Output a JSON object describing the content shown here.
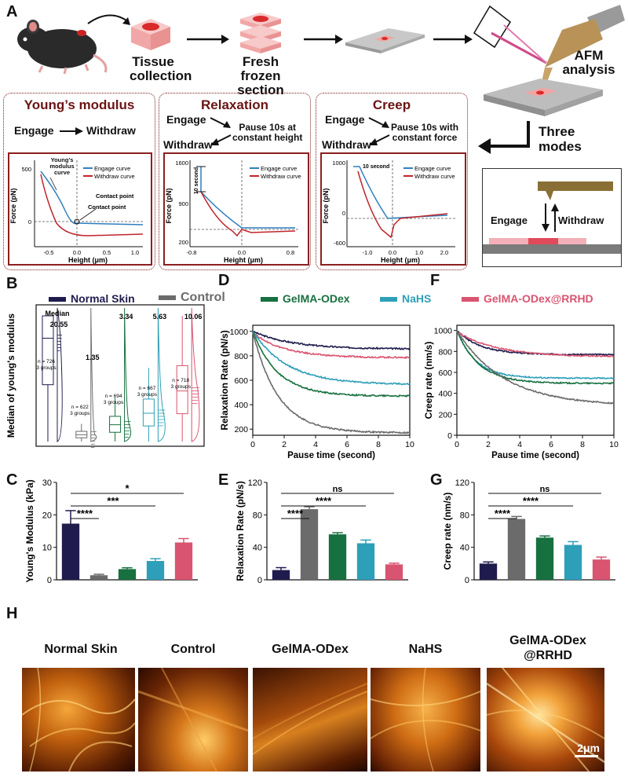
{
  "colors": {
    "normal": "#1f1c4d",
    "control": "#6b6b6b",
    "gelma": "#17703f",
    "nahs": "#2e9fb8",
    "rrhd": "#d95470",
    "dark_red": "#7a1c1c",
    "engage": "#2f7fbf",
    "withdraw": "#c0242b"
  },
  "panel_letters": {
    "A": "A",
    "B": "B",
    "C": "C",
    "D": "D",
    "E": "E",
    "F": "F",
    "G": "G",
    "H": "H"
  },
  "workflow": {
    "step1": "Tissue collection",
    "step1a": "Tissue",
    "step1b": "collection",
    "step2a": "Fresh frozen",
    "step2b": "section",
    "step3a": "AFM",
    "step3b": "analysis",
    "three_modes_a": "Three",
    "three_modes_b": "modes",
    "engage": "Engage",
    "withdraw": "Withdraw"
  },
  "modes": [
    {
      "title": "Young’s modulus",
      "steps": [
        "Engage",
        "Withdraw"
      ],
      "plot": {
        "ylabel": "Force (pN)",
        "xlabel": "Height (μm)",
        "yticks": [
          "500",
          "0"
        ],
        "xticks": [
          "-0.5",
          "0.0",
          "0.5",
          "1.0"
        ],
        "legend": [
          "Engage curve",
          "Withdraw curve"
        ],
        "annotations": [
          "Young’s modulus curve",
          "Contact point",
          "Contact point"
        ]
      }
    },
    {
      "title": "Relaxation",
      "steps": [
        "Engage",
        "Pause 10s at constant height",
        "Withdraw"
      ],
      "pause_a": "Pause 10s at",
      "pause_b": "constant height",
      "plot": {
        "ylabel": "Force (pN)",
        "xlabel": "Height (μm)",
        "yticks": [
          "1600",
          "900",
          "200"
        ],
        "xticks": [
          "-0.8",
          "0.0",
          "0.8"
        ],
        "legend": [
          "Engage curve",
          "Withdraw curve"
        ],
        "annotations": [
          "10 second"
        ]
      }
    },
    {
      "title": "Creep",
      "steps": [
        "Engage",
        "Pause 10s with constant force",
        "Withdraw"
      ],
      "pause_a": "Pause 10s with",
      "pause_b": "constant force",
      "plot": {
        "ylabel": "Force (pN)",
        "xlabel": "Height (μm)",
        "yticks": [
          "1000",
          "0",
          "-600"
        ],
        "xticks": [
          "-1.0",
          "0.0",
          "1.0",
          "2.0"
        ],
        "legend": [
          "Engage curve",
          "Withdraw curve"
        ],
        "annotations": [
          "10 second"
        ]
      }
    }
  ],
  "legend": [
    "Normal Skin",
    "Control",
    "GelMA-ODex",
    "NaHS",
    "GelMA-ODex@RRHD"
  ],
  "chart_data": [
    {
      "panel": "B",
      "type": "violin-box",
      "ylabel": "Median of young's modulus",
      "groups": [
        "Normal Skin",
        "Control",
        "GelMA-ODex",
        "NaHS",
        "GelMA-ODex@RRHD"
      ],
      "medians": [
        20.55,
        1.35,
        3.34,
        5.63,
        10.06
      ],
      "median_header": "Median",
      "n_labels": [
        "n = 726 3 groups",
        "n = 622 3 groups",
        "n = 694 3 groups",
        "n = 667 3 groups",
        "n = 718 3 groups"
      ],
      "median_labels": [
        "20.55",
        "1.35",
        "3.34",
        "5.63",
        "10.06"
      ]
    },
    {
      "panel": "C",
      "type": "bar",
      "ylabel": "Young's Modulus (kPa)",
      "categories": [
        "Normal Skin",
        "Control",
        "GelMA-ODex",
        "NaHS",
        "GelMA-ODex@RRHD"
      ],
      "values": [
        17.3,
        1.4,
        3.3,
        5.8,
        11.5
      ],
      "errors": [
        4.0,
        0.3,
        0.4,
        0.7,
        1.2
      ],
      "ylim": [
        0,
        30
      ],
      "yticks": [
        0,
        10,
        20,
        30
      ],
      "significance": [
        "****",
        "***",
        "*"
      ]
    },
    {
      "panel": "D",
      "type": "line",
      "xlabel": "Pause time (second)",
      "ylabel": "Relaxation Rate (pN/s)",
      "xlim": [
        0,
        10
      ],
      "ylim": [
        150,
        1050
      ],
      "xticks": [
        0,
        2,
        4,
        6,
        8,
        10
      ],
      "yticks": [
        200,
        400,
        600,
        800,
        1000
      ],
      "series": [
        {
          "name": "Normal Skin",
          "start": 1000,
          "end": 855,
          "tau": 2.5
        },
        {
          "name": "GelMA-ODex@RRHD",
          "start": 990,
          "end": 785,
          "tau": 2.0
        },
        {
          "name": "NaHS",
          "start": 1000,
          "end": 565,
          "tau": 2.2
        },
        {
          "name": "GelMA-ODex",
          "start": 1000,
          "end": 470,
          "tau": 1.6
        },
        {
          "name": "Control",
          "start": 1000,
          "end": 170,
          "tau": 1.6
        }
      ]
    },
    {
      "panel": "E",
      "type": "bar",
      "ylabel": "Relaxation Rate (pN/s)",
      "categories": [
        "Normal Skin",
        "Control",
        "GelMA-ODex",
        "NaHS",
        "GelMA-ODex@RRHD"
      ],
      "values": [
        12,
        87,
        56,
        45,
        19
      ],
      "errors": [
        3,
        3,
        2,
        4,
        1.5
      ],
      "ylim": [
        0,
        120
      ],
      "yticks": [
        0,
        40,
        80,
        120
      ],
      "significance": [
        "****",
        "****",
        "ns"
      ]
    },
    {
      "panel": "F",
      "type": "line",
      "xlabel": "Pause time (second)",
      "ylabel": "Creep rate (nm/s)",
      "xlim": [
        0,
        10
      ],
      "ylim": [
        0,
        1050
      ],
      "xticks": [
        0,
        2,
        4,
        6,
        8,
        10
      ],
      "yticks": [
        0,
        200,
        400,
        600,
        800,
        1000
      ],
      "series": [
        {
          "name": "Normal Skin",
          "start": 1000,
          "end": 770,
          "tau": 1.5
        },
        {
          "name": "GelMA-ODex@RRHD",
          "start": 990,
          "end": 750,
          "tau": 2.5
        },
        {
          "name": "NaHS",
          "start": 1000,
          "end": 545,
          "tau": 1.2
        },
        {
          "name": "GelMA-ODex",
          "start": 1000,
          "end": 495,
          "tau": 1.4
        },
        {
          "name": "Control",
          "start": 1000,
          "end": 280,
          "tau": 3.0
        }
      ]
    },
    {
      "panel": "G",
      "type": "bar",
      "ylabel": "Creep rate (nm/s)",
      "categories": [
        "Normal Skin",
        "Control",
        "GelMA-ODex",
        "NaHS",
        "GelMA-ODex@RRHD"
      ],
      "values": [
        20,
        75,
        52,
        43,
        25
      ],
      "errors": [
        2,
        3,
        2,
        4,
        3
      ],
      "ylim": [
        0,
        120
      ],
      "yticks": [
        0,
        40,
        80,
        120
      ],
      "significance": [
        "****",
        "****",
        "ns"
      ]
    }
  ],
  "afm_images": {
    "labels": [
      "Normal Skin",
      "Control",
      "GelMA-ODex",
      "NaHS",
      "GelMA-ODex @RRHD"
    ],
    "rrhd_a": "GelMA-ODex",
    "rrhd_b": "@RRHD",
    "scale_bar": "2μm"
  }
}
